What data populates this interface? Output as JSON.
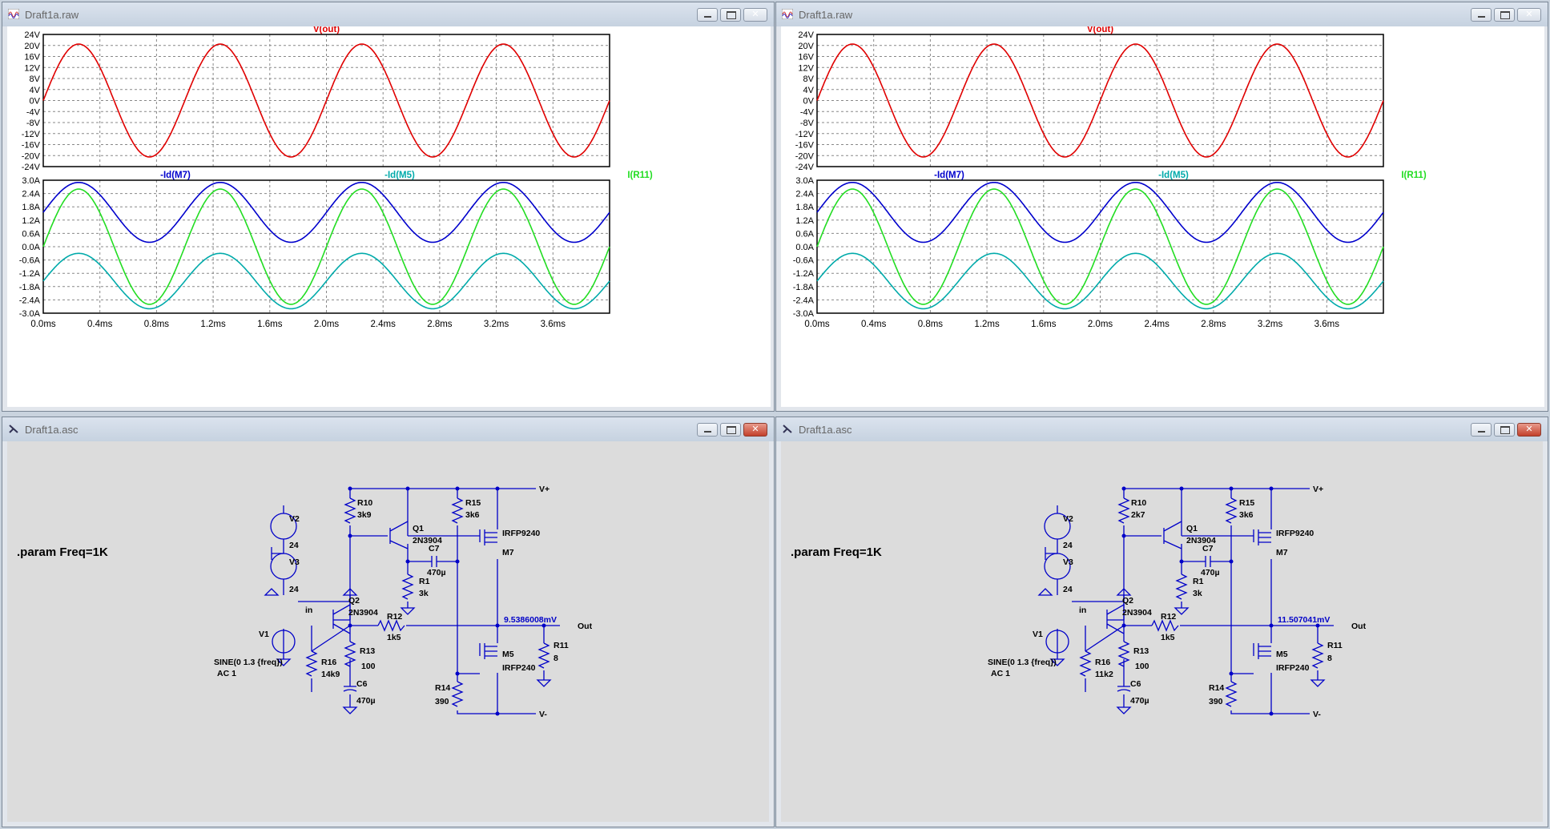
{
  "windows": {
    "wave_left": {
      "title": "Draft1a.raw"
    },
    "wave_right": {
      "title": "Draft1a.raw"
    },
    "schem_left": {
      "title": "Draft1a.asc"
    },
    "schem_right": {
      "title": "Draft1a.asc"
    }
  },
  "chart_data": [
    {
      "type": "line",
      "title": "V(out)",
      "xlabel": "",
      "ylabel": "",
      "xlim": [
        0,
        4
      ],
      "ylim": [
        -24,
        24
      ],
      "y_ticks": [
        "24V",
        "20V",
        "16V",
        "12V",
        "8V",
        "4V",
        "0V",
        "-4V",
        "-8V",
        "-12V",
        "-16V",
        "-20V",
        "-24V"
      ],
      "series": [
        {
          "name": "V(out)",
          "color": "#e00000",
          "offset": 0,
          "amplitude": 20.5
        }
      ]
    },
    {
      "type": "line",
      "title": "",
      "xlabel": "",
      "ylabel": "",
      "xlim": [
        0,
        4
      ],
      "ylim": [
        -3.0,
        3.0
      ],
      "x_ticks": [
        "0.0ms",
        "0.4ms",
        "0.8ms",
        "1.2ms",
        "1.6ms",
        "2.0ms",
        "2.4ms",
        "2.8ms",
        "3.2ms",
        "3.6ms"
      ],
      "y_ticks": [
        "3.0A",
        "2.4A",
        "1.8A",
        "1.2A",
        "0.6A",
        "0.0A",
        "-0.6A",
        "-1.2A",
        "-1.8A",
        "-2.4A",
        "-3.0A"
      ],
      "series": [
        {
          "name": "-Id(M7)",
          "color": "#0000cc",
          "offset": 1.55,
          "amplitude": 1.35
        },
        {
          "name": "-Id(M5)",
          "color": "#00aaaa",
          "offset": -1.55,
          "amplitude": 1.25
        },
        {
          "name": "I(R11)",
          "color": "#22dd22",
          "offset": 0,
          "amplitude": 2.6
        }
      ]
    }
  ],
  "schematic_left": {
    "param": ".param Freq=1K",
    "vplus": "V+",
    "vminus": "V-",
    "out": "Out",
    "in": "in",
    "vout_measure": "9.5386008mV",
    "comps": {
      "v2": "V2",
      "v2_val": "24",
      "v3": "V3",
      "v3_val": "24",
      "v1": "V1",
      "v1_sine": "SINE(0 1.3 {freq})",
      "v1_ac": "AC 1",
      "r10": "R10",
      "r10_val": "3k9",
      "q1": "Q1",
      "q1_type": "2N3904",
      "r15": "R15",
      "r15_val": "3k6",
      "m7_type": "IRFP9240",
      "m7": "M7",
      "c7": "C7",
      "c7_val": "470µ",
      "r1": "R1",
      "r1_val": "3k",
      "q2": "Q2",
      "q2_type": "2N3904",
      "r12": "R12",
      "r12_val": "1k5",
      "r11": "R11",
      "r11_val": "8",
      "m5": "M5",
      "m5_type": "IRFP240",
      "r16": "R16",
      "r16_val": "14k9",
      "r13": "R13",
      "r13_val": "100",
      "c6": "C6",
      "c6_val": "470µ",
      "r14": "R14",
      "r14_val": "390"
    }
  },
  "schematic_right": {
    "param": ".param Freq=1K",
    "vplus": "V+",
    "vminus": "V-",
    "out": "Out",
    "in": "in",
    "vout_measure": "11.507041mV",
    "comps": {
      "v2": "V2",
      "v2_val": "24",
      "v3": "V3",
      "v3_val": "24",
      "v1": "V1",
      "v1_sine": "SINE(0 1.3 {freq})",
      "v1_ac": "AC 1",
      "r10": "R10",
      "r10_val": "2k7",
      "q1": "Q1",
      "q1_type": "2N3904",
      "r15": "R15",
      "r15_val": "3k6",
      "m7_type": "IRFP9240",
      "m7": "M7",
      "c7": "C7",
      "c7_val": "470µ",
      "r1": "R1",
      "r1_val": "3k",
      "q2": "Q2",
      "q2_type": "2N3904",
      "r12": "R12",
      "r12_val": "1k5",
      "r11": "R11",
      "r11_val": "8",
      "m5": "M5",
      "m5_type": "IRFP240",
      "r16": "R16",
      "r16_val": "11k2",
      "r13": "R13",
      "r13_val": "100",
      "c6": "C6",
      "c6_val": "470µ",
      "r14": "R14",
      "r14_val": "390"
    }
  }
}
